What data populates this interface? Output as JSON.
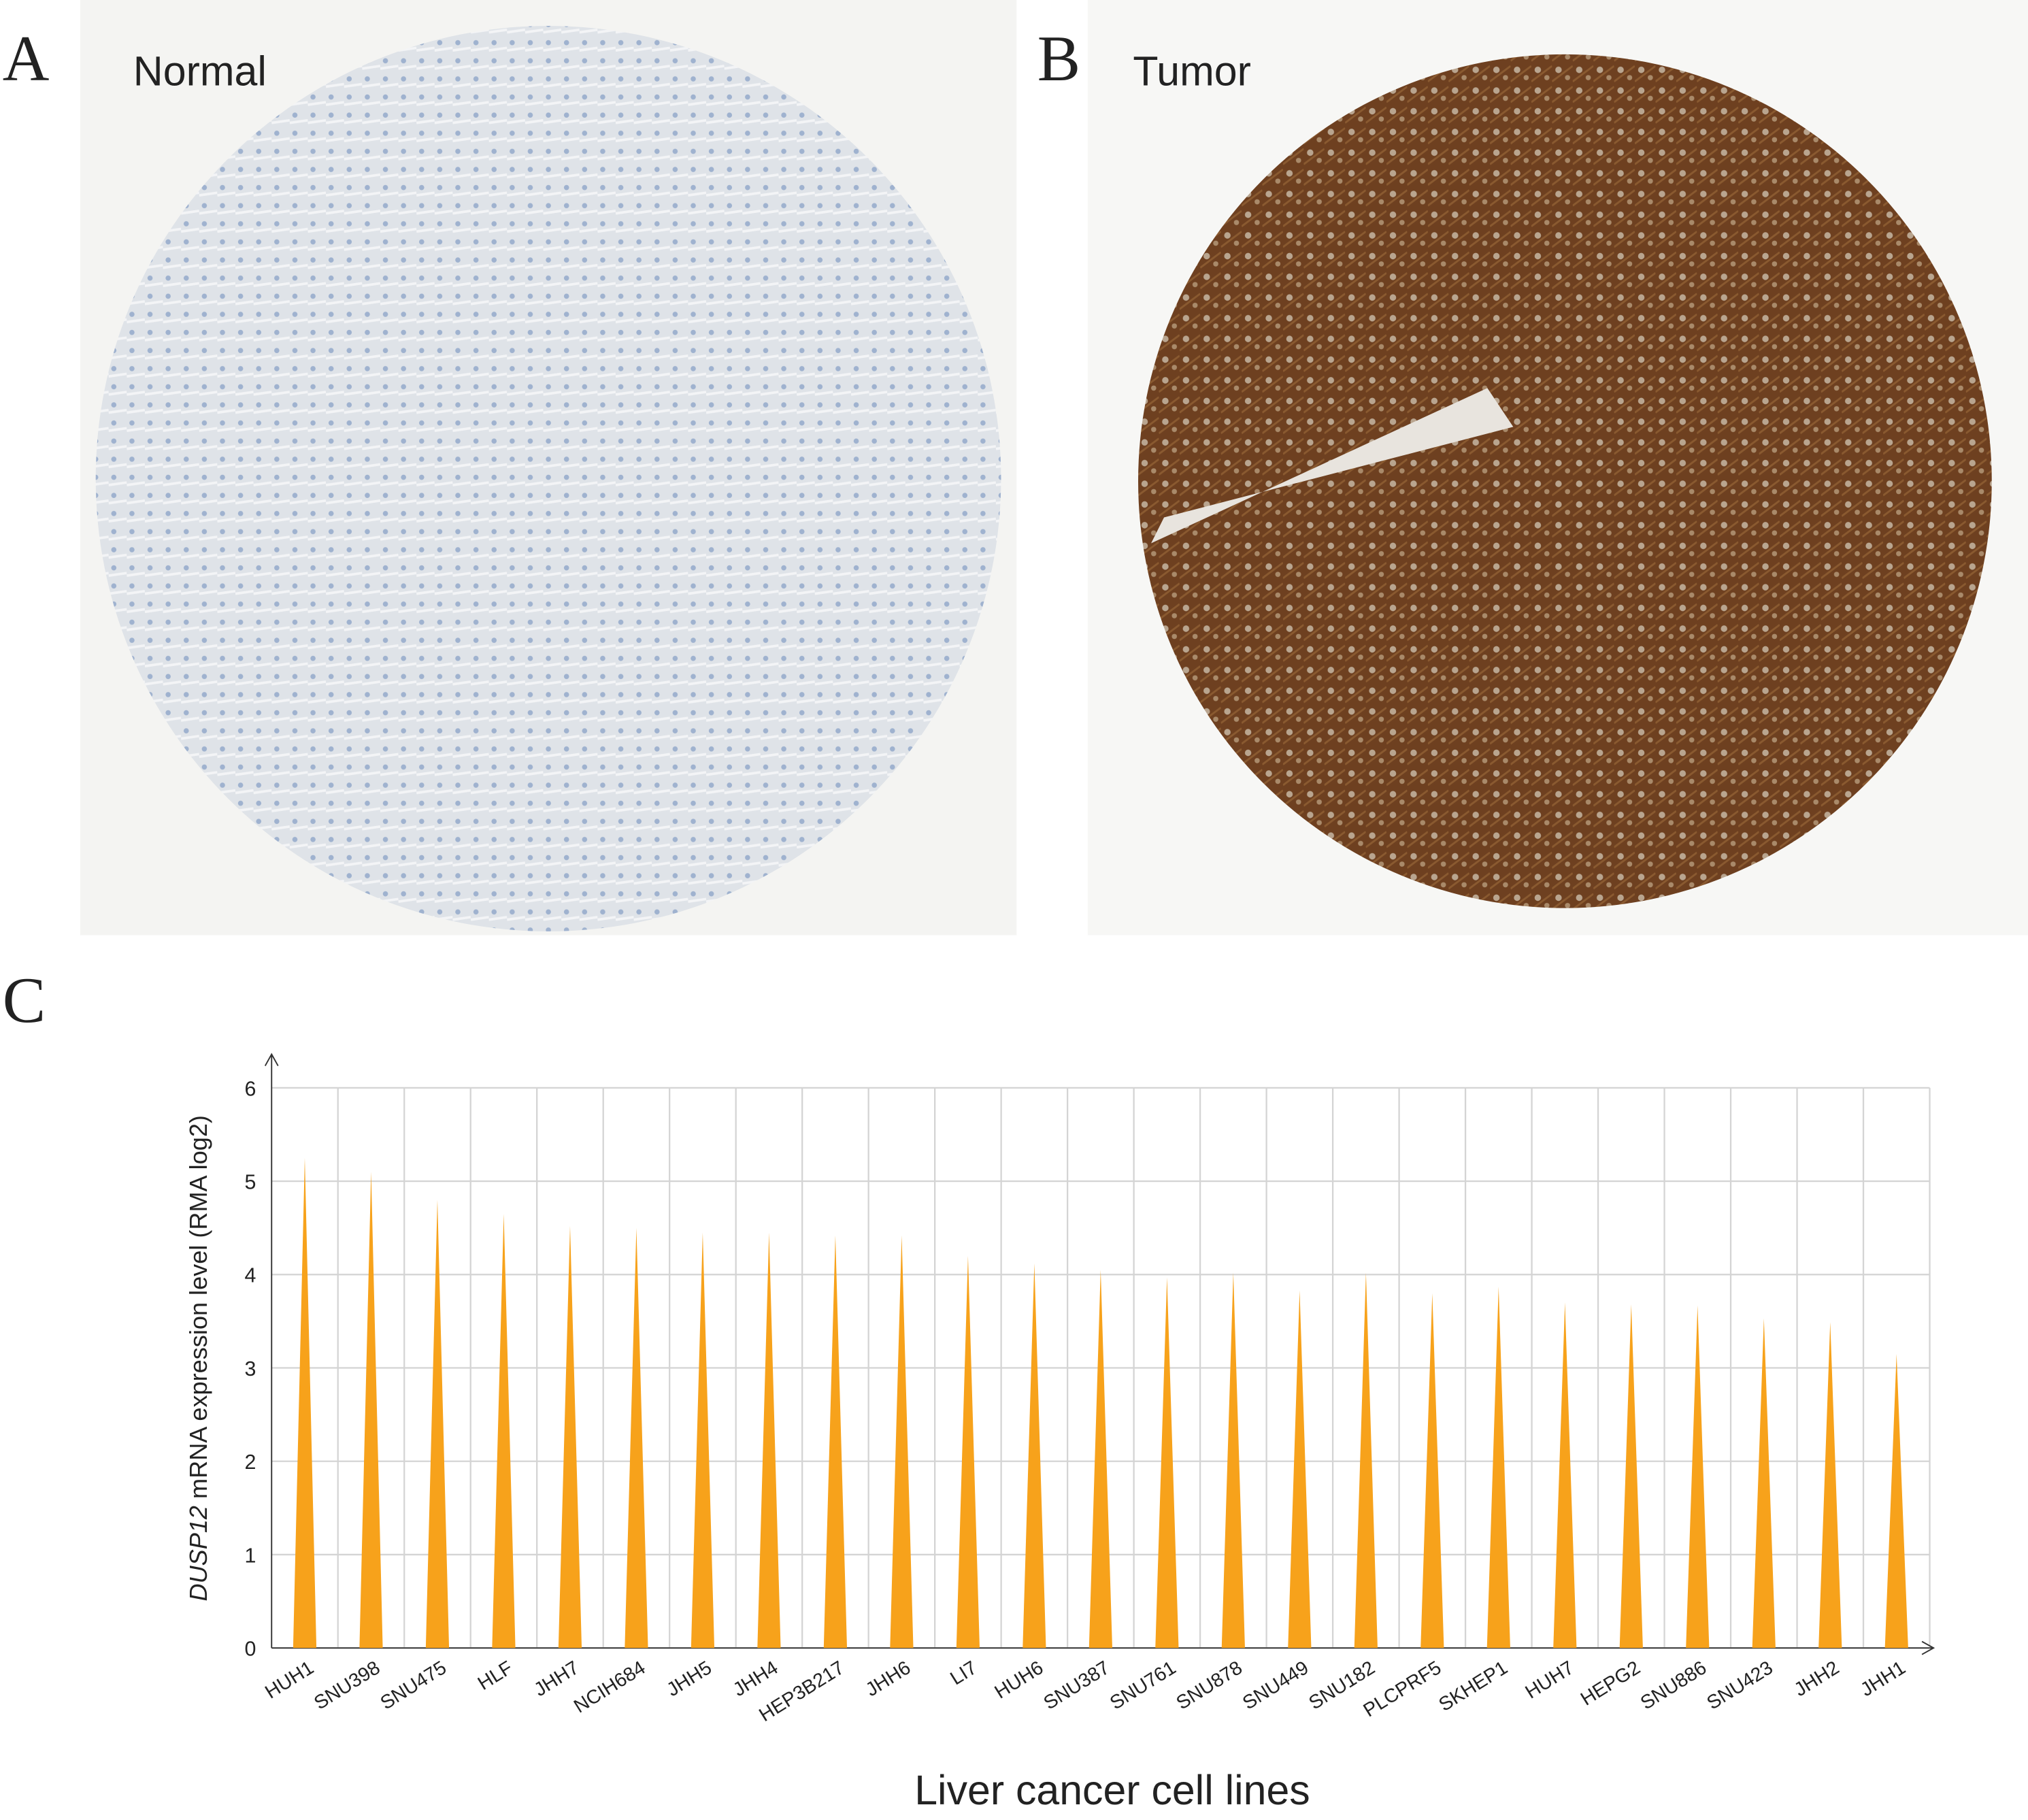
{
  "panels": [
    {
      "letter": "A",
      "label": "Normal"
    },
    {
      "letter": "B",
      "label": "Tumor"
    },
    {
      "letter": "C"
    }
  ],
  "chart_data": {
    "type": "spike",
    "ylabel": [
      "DUSP12",
      " mRNA expression level (RMA log2)"
    ],
    "xlabel": "Liver cancer cell lines",
    "categories": [
      "HUH1",
      "SNU398",
      "SNU475",
      "HLF",
      "JHH7",
      "NCIH684",
      "JHH5",
      "JHH4",
      "HEP3B217",
      "JHH6",
      "LI7",
      "HUH6",
      "SNU387",
      "SNU761",
      "SNU878",
      "SNU449",
      "SNU182",
      "PLCPRF5",
      "SKHEP1",
      "HUH7",
      "HEPG2",
      "SNU886",
      "SNU423",
      "JHH2",
      "JHH1"
    ],
    "values": [
      5.25,
      5.1,
      4.8,
      4.65,
      4.52,
      4.5,
      4.45,
      4.45,
      4.42,
      4.42,
      4.2,
      4.12,
      4.05,
      3.97,
      4.02,
      3.83,
      4.02,
      3.8,
      3.87,
      3.7,
      3.68,
      3.67,
      3.53,
      3.49,
      3.15
    ],
    "color": "#f7a21b",
    "ylim": [
      0,
      6
    ],
    "yticks": [
      0,
      1,
      2,
      3,
      4,
      5,
      6
    ],
    "grid": true
  }
}
